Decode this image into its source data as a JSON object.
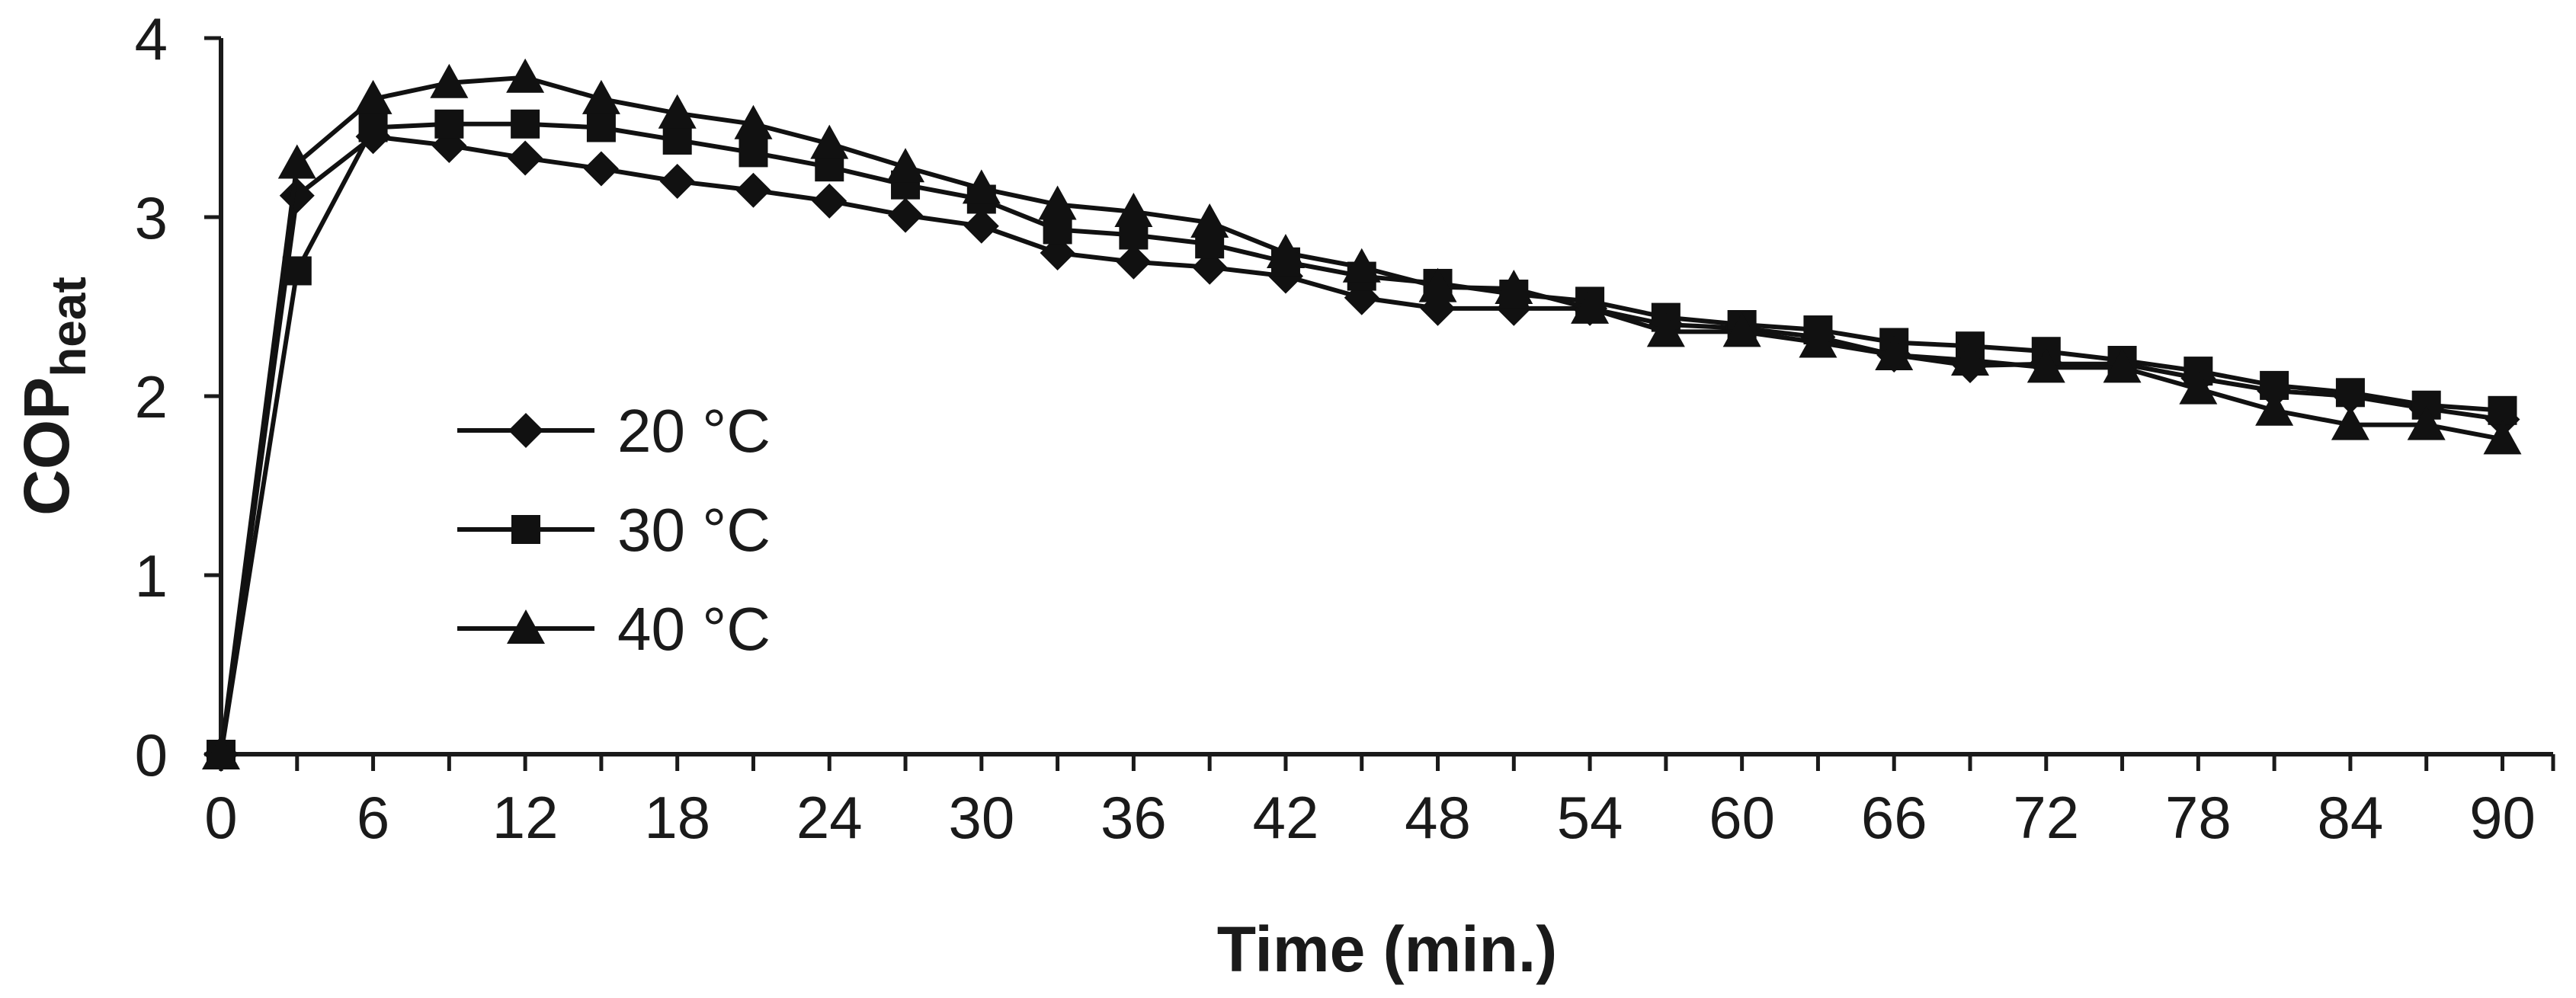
{
  "chart_data": {
    "type": "line",
    "xlabel": "Time (min.)",
    "ylabel": "COP",
    "ylabel_sub": "heat",
    "xlim": [
      0,
      92
    ],
    "ylim": [
      0,
      4
    ],
    "x_ticks": [
      0,
      6,
      12,
      18,
      24,
      30,
      36,
      42,
      48,
      54,
      60,
      66,
      72,
      78,
      84,
      90
    ],
    "y_ticks": [
      0,
      1,
      2,
      3,
      4
    ],
    "x": [
      0,
      3,
      6,
      9,
      12,
      15,
      18,
      21,
      24,
      27,
      30,
      33,
      36,
      39,
      42,
      45,
      48,
      51,
      54,
      57,
      60,
      63,
      66,
      69,
      72,
      75,
      78,
      81,
      84,
      87,
      90
    ],
    "series": [
      {
        "name": "20 °C",
        "marker": "diamond",
        "values": [
          0.0,
          3.12,
          3.45,
          3.4,
          3.33,
          3.27,
          3.2,
          3.15,
          3.09,
          3.01,
          2.95,
          2.8,
          2.75,
          2.72,
          2.67,
          2.55,
          2.49,
          2.49,
          2.49,
          2.4,
          2.38,
          2.33,
          2.23,
          2.17,
          2.18,
          2.18,
          2.1,
          2.03,
          2.0,
          1.93,
          1.87
        ]
      },
      {
        "name": "30 °C",
        "marker": "square",
        "values": [
          0.0,
          2.7,
          3.5,
          3.52,
          3.52,
          3.5,
          3.43,
          3.36,
          3.28,
          3.18,
          3.1,
          2.93,
          2.9,
          2.85,
          2.75,
          2.67,
          2.63,
          2.57,
          2.53,
          2.44,
          2.4,
          2.37,
          2.3,
          2.28,
          2.25,
          2.2,
          2.14,
          2.06,
          2.02,
          1.95,
          1.92
        ]
      },
      {
        "name": "40 °C",
        "marker": "triangle",
        "values": [
          0.0,
          3.3,
          3.66,
          3.75,
          3.78,
          3.66,
          3.58,
          3.52,
          3.41,
          3.28,
          3.16,
          3.07,
          3.03,
          2.97,
          2.8,
          2.72,
          2.61,
          2.6,
          2.49,
          2.36,
          2.36,
          2.3,
          2.23,
          2.2,
          2.16,
          2.16,
          2.04,
          1.92,
          1.84,
          1.84,
          1.76
        ]
      }
    ],
    "legend_position": "center-left",
    "grid": false
  }
}
